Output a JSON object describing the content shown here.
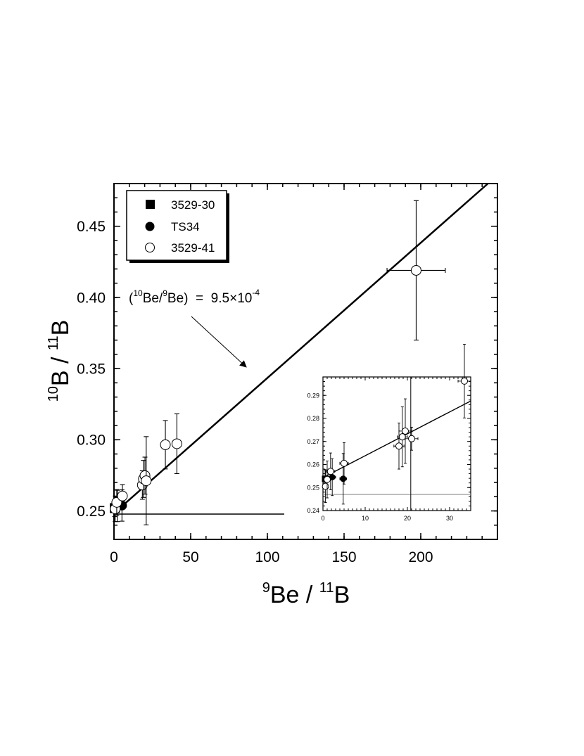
{
  "chart_data": [
    {
      "id": "main",
      "type": "scatter",
      "xlabel": {
        "sup1": "9",
        "base1": "Be",
        "sep": " / ",
        "sup2": "11",
        "base2": "B"
      },
      "ylabel": {
        "sup1": "10",
        "base1": "B",
        "sep": " / ",
        "sup2": "11",
        "base2": "B"
      },
      "xlim": [
        0,
        250
      ],
      "ylim": [
        0.23,
        0.48
      ],
      "xticks": [
        0,
        50,
        100,
        150,
        200
      ],
      "xtick_labels": [
        "0",
        "50",
        "100",
        "150",
        "200"
      ],
      "yticks": [
        0.25,
        0.3,
        0.35,
        0.4,
        0.45
      ],
      "ytick_labels": [
        "0.25",
        "0.30",
        "0.35",
        "0.40",
        "0.45"
      ],
      "legend": {
        "placement": "top-left",
        "entries": [
          {
            "label": "3529-30",
            "marker": "square-filled"
          },
          {
            "label": "TS34",
            "marker": "circle-filled"
          },
          {
            "label": "3529-41",
            "marker": "circle-open"
          }
        ]
      },
      "annotation": {
        "prefix": "(",
        "sup1": "10",
        "mid": "Be/",
        "sup2": "9",
        "suffix": "Be)  =  9.5×10",
        "exp": "-4"
      },
      "fit_line": {
        "intercept": 0.2484,
        "slope": 0.00095
      },
      "reference_line": {
        "y": 0.2478,
        "x_end": 111
      },
      "series": [
        {
          "name": "3529-30",
          "marker": "square-filled",
          "points": [
            {
              "x": 0.5,
              "y": 0.252,
              "xerr": 0.5,
              "yerr": 0.006
            }
          ]
        },
        {
          "name": "TS34",
          "marker": "circle-filled",
          "points": [
            {
              "x": 2.2,
              "y": 0.2535,
              "xerr": 1.0,
              "yerr": 0.011
            },
            {
              "x": 5.2,
              "y": 0.2538,
              "xerr": 1.0,
              "yerr": 0.011
            }
          ]
        },
        {
          "name": "3529-41",
          "marker": "circle-open",
          "points": [
            {
              "x": 0.8,
              "y": 0.2515,
              "xerr": 0.8,
              "yerr": 0.009
            },
            {
              "x": 1.8,
              "y": 0.256,
              "xerr": 1.5,
              "yerr": 0.009
            },
            {
              "x": 5.5,
              "y": 0.2605,
              "xerr": 1.5,
              "yerr": 0.008
            },
            {
              "x": 18.5,
              "y": 0.2682,
              "xerr": 1.5,
              "yerr": 0.01
            },
            {
              "x": 19.2,
              "y": 0.2725,
              "xerr": 1.5,
              "yerr": 0.013
            },
            {
              "x": 20.2,
              "y": 0.2748,
              "xerr": 1.5,
              "yerr": 0.013
            },
            {
              "x": 21.0,
              "y": 0.2712,
              "xerr": 2.0,
              "yerr": 0.031
            },
            {
              "x": 33.5,
              "y": 0.2965,
              "xerr": 2.5,
              "yerr": 0.017
            },
            {
              "x": 41.0,
              "y": 0.2972,
              "xerr": 2.5,
              "yerr": 0.021
            },
            {
              "x": 197.0,
              "y": 0.419,
              "xerr": 19.0,
              "yerr": 0.049
            }
          ]
        }
      ]
    },
    {
      "id": "inset",
      "type": "scatter",
      "xlim": [
        0,
        35
      ],
      "ylim": [
        0.24,
        0.298
      ],
      "xticks": [
        0,
        10,
        20,
        30
      ],
      "xtick_labels": [
        "0",
        "10",
        "20",
        "30"
      ],
      "yticks": [
        0.24,
        0.25,
        0.26,
        0.27,
        0.28,
        0.29
      ],
      "ytick_labels": [
        "0.24",
        "0.25",
        "0.26",
        "0.27",
        "0.28",
        "0.29"
      ],
      "fit_line": {
        "intercept": 0.2543,
        "slope": 0.00095
      },
      "reference_line": {
        "y": 0.247
      },
      "vertical_line": {
        "x": 20.8
      },
      "series": [
        {
          "name": "3529-30",
          "marker": "square-filled",
          "points": [
            {
              "x": 0.5,
              "y": 0.2538,
              "xerr": 0.4,
              "yerr": 0.004
            }
          ]
        },
        {
          "name": "TS34",
          "marker": "circle-filled",
          "points": [
            {
              "x": 2.2,
              "y": 0.2545,
              "xerr": 0.8,
              "yerr": 0.008
            },
            {
              "x": 4.8,
              "y": 0.2538,
              "xerr": 0.8,
              "yerr": 0.011
            }
          ]
        },
        {
          "name": "3529-41",
          "marker": "circle-open",
          "points": [
            {
              "x": 0.6,
              "y": 0.2505,
              "xerr": 0.6,
              "yerr": 0.007
            },
            {
              "x": 1.0,
              "y": 0.2535,
              "xerr": 0.8,
              "yerr": 0.008
            },
            {
              "x": 1.8,
              "y": 0.257,
              "xerr": 1.0,
              "yerr": 0.008
            },
            {
              "x": 5.0,
              "y": 0.2605,
              "xerr": 1.0,
              "yerr": 0.009
            },
            {
              "x": 18.0,
              "y": 0.268,
              "xerr": 1.2,
              "yerr": 0.01
            },
            {
              "x": 18.8,
              "y": 0.272,
              "xerr": 1.2,
              "yerr": 0.013
            },
            {
              "x": 19.5,
              "y": 0.2745,
              "xerr": 1.5,
              "yerr": 0.014
            },
            {
              "x": 21.0,
              "y": 0.2712,
              "xerr": 1.5,
              "yerr": 0.005
            },
            {
              "x": 33.5,
              "y": 0.2962,
              "xerr": 1.5,
              "yerr": 0.016
            }
          ]
        }
      ]
    }
  ]
}
